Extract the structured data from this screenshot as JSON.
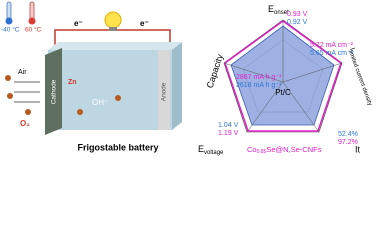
{
  "battery": {
    "cold": "-40 °C",
    "hot": "60 °C",
    "electron_left": "e⁻",
    "electron_right": "e⁻",
    "air": "Air",
    "cathode": "Cathode",
    "anode": "Anode",
    "zn": "Zn",
    "hydroxide": "OH⁻",
    "oxygen": "O₂",
    "caption": "Frigostable battery"
  },
  "radar": {
    "axes": [
      {
        "main": "E",
        "sub": "onset"
      },
      {
        "main": "I",
        "sub": "limited current density"
      },
      {
        "main": "It"
      },
      {
        "main": "E",
        "sub": "voltage"
      },
      {
        "main": "Capacity"
      }
    ],
    "reference": "Pt/C",
    "catalyst": {
      "main": "Co",
      "sub": "0.85",
      "rest": "Se@N,Se-CNFs"
    },
    "values": {
      "onset": [
        "0.93 V",
        "0.92 V"
      ],
      "current": [
        "5.72 mA cm⁻²",
        "5.65 mA cm⁻²"
      ],
      "it": [
        "52.4%",
        "97.2%"
      ],
      "voltage": [
        "1.04 V",
        "1.19 V"
      ],
      "capacity": [
        "2867 mA h g⁻¹",
        "2618 mA h g⁻¹"
      ]
    }
  }
}
